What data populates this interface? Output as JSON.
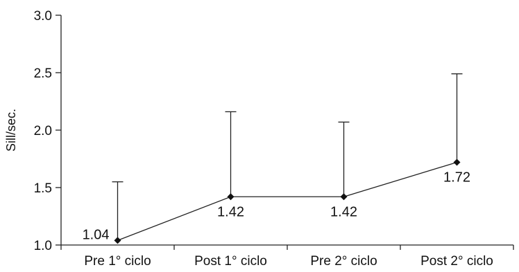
{
  "chart_data": {
    "type": "line",
    "title": "",
    "xlabel": "",
    "ylabel": "Sill/sec.",
    "ylim": [
      1.0,
      3.0
    ],
    "yticks": [
      "1.0",
      "1.5",
      "2.0",
      "2.5",
      "3.0"
    ],
    "categories": [
      "Pre 1° ciclo",
      "Post 1° ciclo",
      "Pre 2° ciclo",
      "Post 2° ciclo"
    ],
    "series": [
      {
        "values": [
          1.04,
          1.42,
          1.42,
          1.72
        ],
        "labels": [
          "1.04",
          "1.42",
          "1.42",
          "1.72"
        ],
        "error_upper": [
          1.55,
          2.16,
          2.07,
          2.49
        ]
      }
    ],
    "grid": false,
    "marker": "diamond",
    "color": "#111111"
  }
}
